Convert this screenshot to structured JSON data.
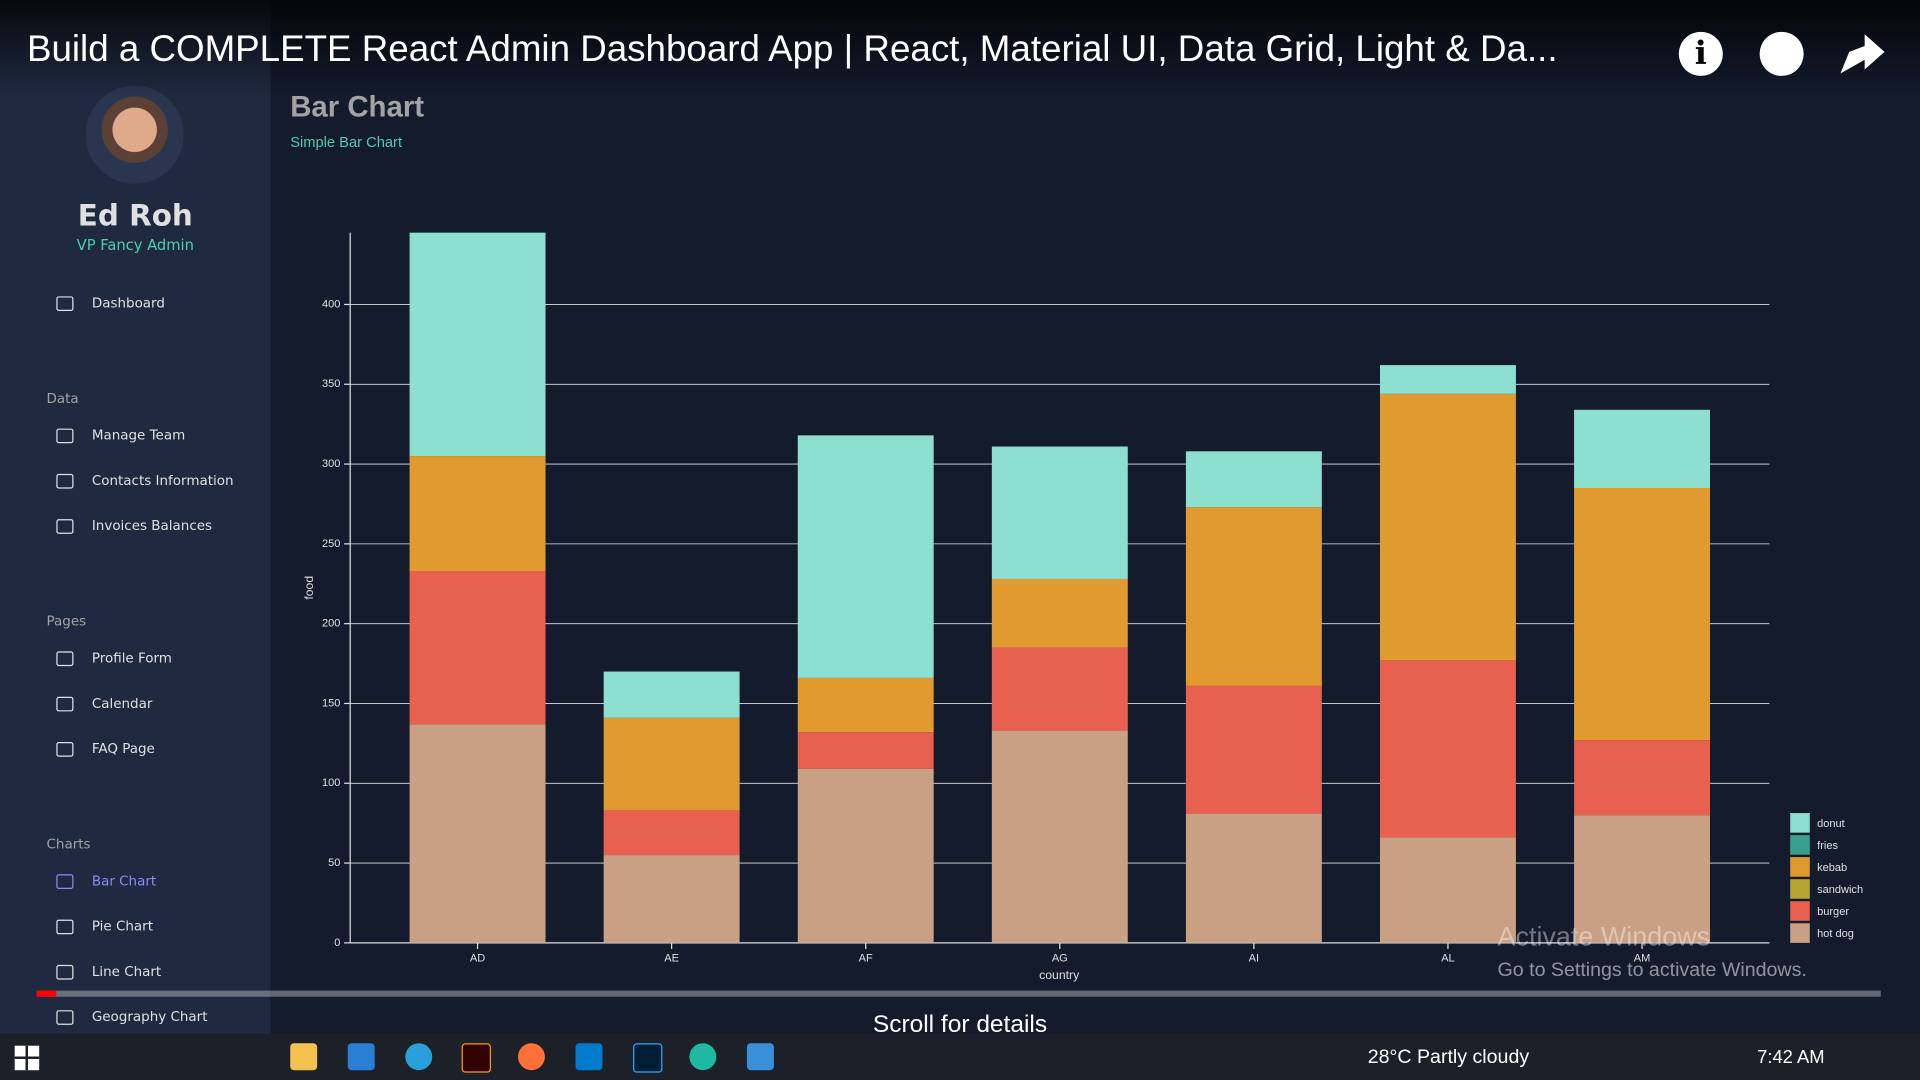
{
  "video": {
    "title": "Build a COMPLETE React Admin Dashboard App | React, Material UI, Data Grid, Light & Da...",
    "scroll_hint": "Scroll for details"
  },
  "sidebar": {
    "name": "Ed Roh",
    "role": "VP Fancy Admin",
    "menu": [
      {
        "items": [
          "Dashboard"
        ]
      },
      {
        "heading": "Data",
        "items": [
          "Manage Team",
          "Contacts Information",
          "Invoices Balances"
        ]
      },
      {
        "heading": "Pages",
        "items": [
          "Profile Form",
          "Calendar",
          "FAQ Page"
        ]
      },
      {
        "heading": "Charts",
        "items": [
          "Bar Chart",
          "Pie Chart",
          "Line Chart",
          "Geography Chart"
        ]
      }
    ],
    "active": "Bar Chart"
  },
  "chart_data": {
    "type": "bar",
    "stacked": true,
    "title": "Bar Chart",
    "subtitle": "Simple Bar Chart",
    "x_label": "country",
    "y_label": "food",
    "categories": [
      "AD",
      "AE",
      "AF",
      "AG",
      "AI",
      "AL",
      "AM"
    ],
    "series": [
      {
        "name": "hot dog",
        "color": "#c9a084",
        "values": [
          137,
          55,
          109,
          133,
          81,
          66,
          80
        ]
      },
      {
        "name": "burger",
        "color": "#e8604f",
        "values": [
          96,
          28,
          23,
          52,
          80,
          111,
          47
        ]
      },
      {
        "name": "sandwich",
        "color": "#b5a532",
        "values": [
          null,
          null,
          null,
          null,
          null,
          null,
          null
        ]
      },
      {
        "name": "kebab",
        "color": "#e09a30",
        "values": [
          72,
          58,
          34,
          43,
          112,
          167,
          158
        ]
      },
      {
        "name": "fries",
        "color": "#3a9e8c",
        "values": [
          null,
          null,
          null,
          null,
          null,
          null,
          null
        ]
      },
      {
        "name": "donut",
        "color": "#8ddfcf",
        "values": [
          140,
          29,
          152,
          83,
          35,
          18,
          49
        ]
      }
    ],
    "legend_order": [
      "donut",
      "fries",
      "kebab",
      "sandwich",
      "burger",
      "hot dog"
    ],
    "ylim": [
      0,
      445
    ],
    "yticks": [
      0,
      50,
      100,
      150,
      200,
      250,
      300,
      350,
      400
    ],
    "grid": true,
    "legend": "bottom-right"
  },
  "watermark": {
    "line1": "Activate Windows",
    "line2": "Go to Settings to activate Windows."
  },
  "taskbar": {
    "weather": "28°C Partly cloudy",
    "time": "7:42 AM"
  }
}
